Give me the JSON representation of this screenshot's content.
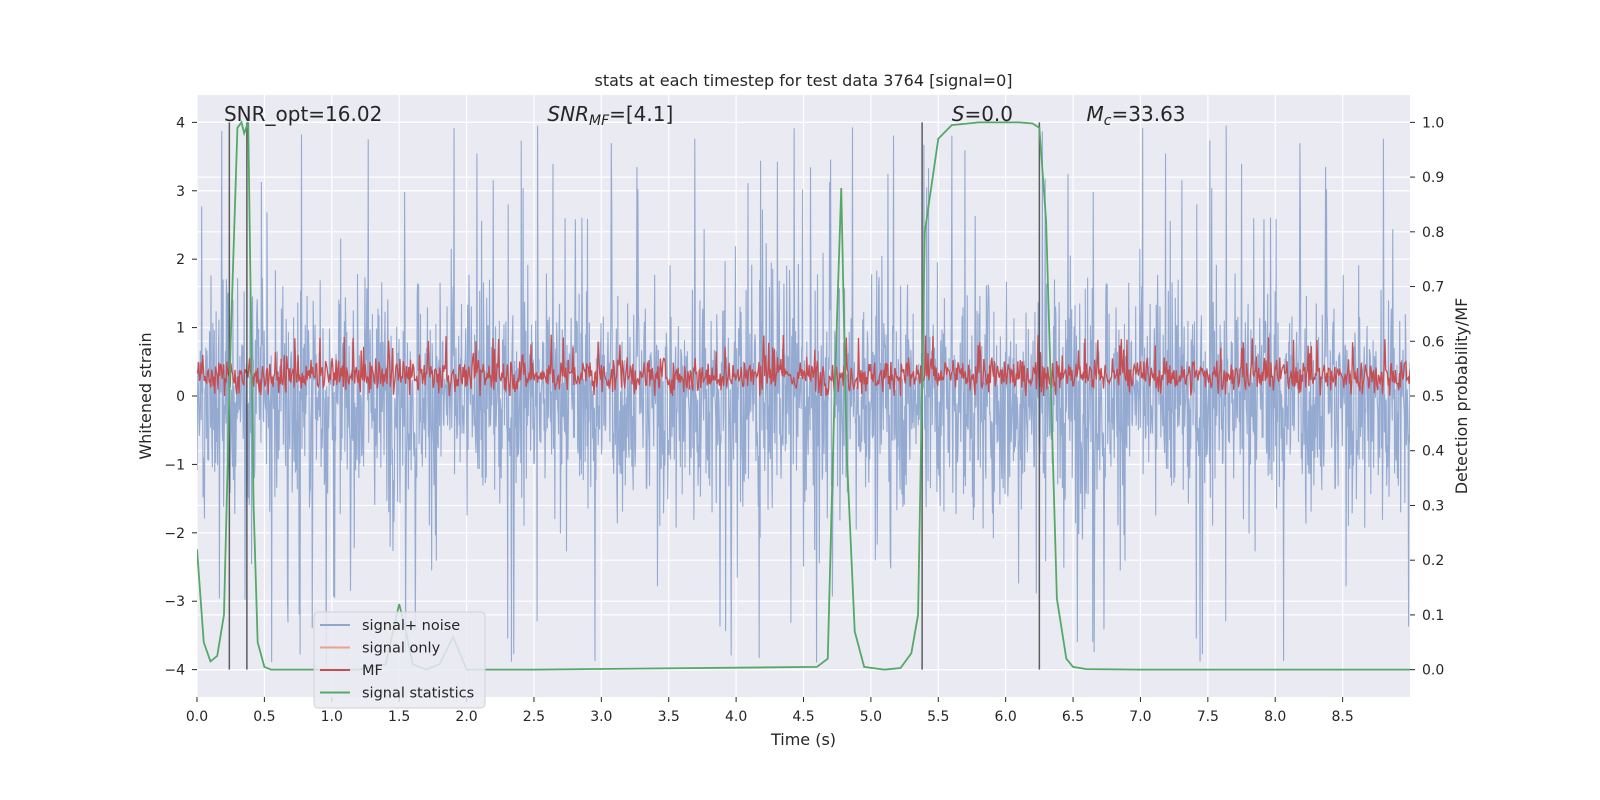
{
  "chart_data": {
    "type": "line",
    "title": "stats at each timestep for test data 3764 [signal=0]",
    "xlabel": "Time (s)",
    "ylabel_left": "Whitened strain",
    "ylabel_right": "Detection probability/MF",
    "xlim": [
      0,
      9
    ],
    "ylim_left": [
      -4.4,
      4.4
    ],
    "ylim_right": [
      -0.05,
      1.05
    ],
    "x_ticks": [
      "0.0",
      "0.5",
      "1.0",
      "1.5",
      "2.0",
      "2.5",
      "3.0",
      "3.5",
      "4.0",
      "4.5",
      "5.0",
      "5.5",
      "6.0",
      "6.5",
      "7.0",
      "7.5",
      "8.0",
      "8.5"
    ],
    "y_ticks_left": [
      "−4",
      "−3",
      "−2",
      "−1",
      "0",
      "1",
      "2",
      "3",
      "4"
    ],
    "y_ticks_right": [
      "0.0",
      "0.1",
      "0.2",
      "0.3",
      "0.4",
      "0.5",
      "0.6",
      "0.7",
      "0.8",
      "0.9",
      "1.0"
    ],
    "grid": true,
    "legend_position": "bottom-left",
    "annotations": [
      {
        "text": "SNR_opt=16.02",
        "x": 0.2
      },
      {
        "text": "SNR_MF=[4.1]",
        "x": 2.6
      },
      {
        "text": "S=0.0",
        "x": 5.6
      },
      {
        "text": "M_c=33.63",
        "x": 6.6
      }
    ],
    "vertical_lines": [
      0.24,
      0.37,
      5.38,
      6.25
    ],
    "series": [
      {
        "name": "signal+ noise",
        "color": "#8fa7cf",
        "axis": "left",
        "style": "noise",
        "amplitude_typical": 1.3,
        "amplitude_max": 4.0
      },
      {
        "name": "signal only",
        "color": "#e8a48a",
        "axis": "left",
        "x": [],
        "y": []
      },
      {
        "name": "MF",
        "color": "#c44e52",
        "axis": "left",
        "style": "noise",
        "baseline": 0.3,
        "range": [
          0.0,
          0.9
        ]
      },
      {
        "name": "signal statistics",
        "color": "#55a868",
        "axis": "right",
        "x": [
          0.0,
          0.05,
          0.1,
          0.15,
          0.2,
          0.25,
          0.3,
          0.33,
          0.35,
          0.38,
          0.42,
          0.45,
          0.5,
          0.55,
          0.6,
          0.9,
          1.2,
          1.4,
          1.5,
          1.55,
          1.6,
          1.7,
          1.8,
          1.9,
          2.0,
          2.1,
          2.2,
          2.5,
          4.6,
          4.68,
          4.73,
          4.78,
          4.82,
          4.88,
          4.95,
          5.1,
          5.22,
          5.3,
          5.35,
          5.4,
          5.5,
          5.6,
          5.8,
          6.1,
          6.2,
          6.25,
          6.3,
          6.38,
          6.45,
          6.5,
          6.6,
          7.0,
          8.0,
          9.0
        ],
        "y": [
          0.22,
          0.05,
          0.015,
          0.025,
          0.1,
          0.6,
          0.99,
          1.0,
          0.98,
          1.0,
          0.3,
          0.05,
          0.005,
          0.0,
          0.0,
          0.0,
          0.0,
          0.01,
          0.12,
          0.07,
          0.01,
          0.0,
          0.01,
          0.06,
          0.0,
          0.0,
          0.0,
          0.0,
          0.005,
          0.02,
          0.5,
          0.88,
          0.4,
          0.07,
          0.005,
          0.0,
          0.003,
          0.03,
          0.1,
          0.8,
          0.97,
          0.995,
          1.0,
          1.0,
          0.998,
          0.99,
          0.82,
          0.13,
          0.02,
          0.005,
          0.001,
          0.0,
          0.0,
          0.0
        ]
      }
    ]
  }
}
